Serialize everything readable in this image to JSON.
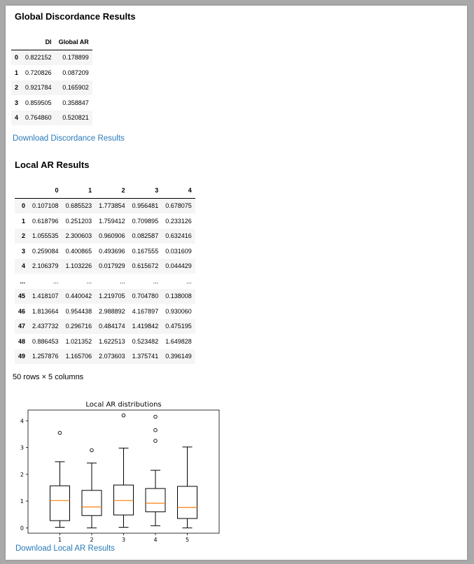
{
  "global": {
    "heading": "Global Discordance Results",
    "columns": [
      "",
      "DI",
      "Global AR"
    ],
    "rows": [
      [
        "0",
        "0.822152",
        "0.178899"
      ],
      [
        "1",
        "0.720826",
        "0.087209"
      ],
      [
        "2",
        "0.921784",
        "0.165902"
      ],
      [
        "3",
        "0.859505",
        "0.358847"
      ],
      [
        "4",
        "0.764860",
        "0.520821"
      ]
    ],
    "download_label": "Download Discordance Results"
  },
  "local": {
    "heading": "Local AR Results",
    "columns": [
      "",
      "0",
      "1",
      "2",
      "3",
      "4"
    ],
    "rows": [
      [
        "0",
        "0.107108",
        "0.685523",
        "1.773854",
        "0.956481",
        "0.678075"
      ],
      [
        "1",
        "0.618796",
        "0.251203",
        "1.759412",
        "0.709895",
        "0.233126"
      ],
      [
        "2",
        "1.055535",
        "2.300603",
        "0.960906",
        "0.082587",
        "0.632416"
      ],
      [
        "3",
        "0.259084",
        "0.400865",
        "0.493696",
        "0.167555",
        "0.031609"
      ],
      [
        "4",
        "2.106379",
        "1.103226",
        "0.017929",
        "0.615672",
        "0.044429"
      ],
      [
        "...",
        "...",
        "...",
        "...",
        "...",
        "..."
      ],
      [
        "45",
        "1.418107",
        "0.440042",
        "1.219705",
        "0.704780",
        "0.138008"
      ],
      [
        "46",
        "1.813664",
        "0.954438",
        "2.988892",
        "4.167897",
        "0.930060"
      ],
      [
        "47",
        "2.437732",
        "0.296716",
        "0.484174",
        "1.419842",
        "0.475195"
      ],
      [
        "48",
        "0.886453",
        "1.021352",
        "1.622513",
        "0.523482",
        "1.649828"
      ],
      [
        "49",
        "1.257876",
        "1.165706",
        "2.073603",
        "1.375741",
        "0.396149"
      ]
    ],
    "shape_note": "50 rows × 5 columns",
    "download_label": "Download Local AR Results"
  },
  "chart_data": {
    "type": "box",
    "title": "Local AR distributions",
    "xlabel": "",
    "ylabel": "",
    "categories": [
      "1",
      "2",
      "3",
      "4",
      "5"
    ],
    "ylim": [
      -0.2,
      4.4
    ],
    "yticks": [
      0,
      1,
      2,
      3,
      4
    ],
    "box_color": "#000000",
    "median_color": "#ff7f0e",
    "boxes": [
      {
        "label": "1",
        "whislo": 0.02,
        "q1": 0.27,
        "median": 1.02,
        "q3": 1.57,
        "whishi": 2.47,
        "fliers": [
          3.55
        ]
      },
      {
        "label": "2",
        "whislo": 0.0,
        "q1": 0.46,
        "median": 0.78,
        "q3": 1.4,
        "whishi": 2.42,
        "fliers": [
          2.9
        ]
      },
      {
        "label": "3",
        "whislo": 0.02,
        "q1": 0.48,
        "median": 1.02,
        "q3": 1.6,
        "whishi": 2.98,
        "fliers": [
          4.2
        ]
      },
      {
        "label": "4",
        "whislo": 0.08,
        "q1": 0.6,
        "median": 0.92,
        "q3": 1.47,
        "whishi": 2.15,
        "fliers": [
          3.25,
          3.65,
          4.15
        ]
      },
      {
        "label": "5",
        "whislo": 0.0,
        "q1": 0.35,
        "median": 0.76,
        "q3": 1.55,
        "whishi": 3.02,
        "fliers": []
      }
    ]
  }
}
